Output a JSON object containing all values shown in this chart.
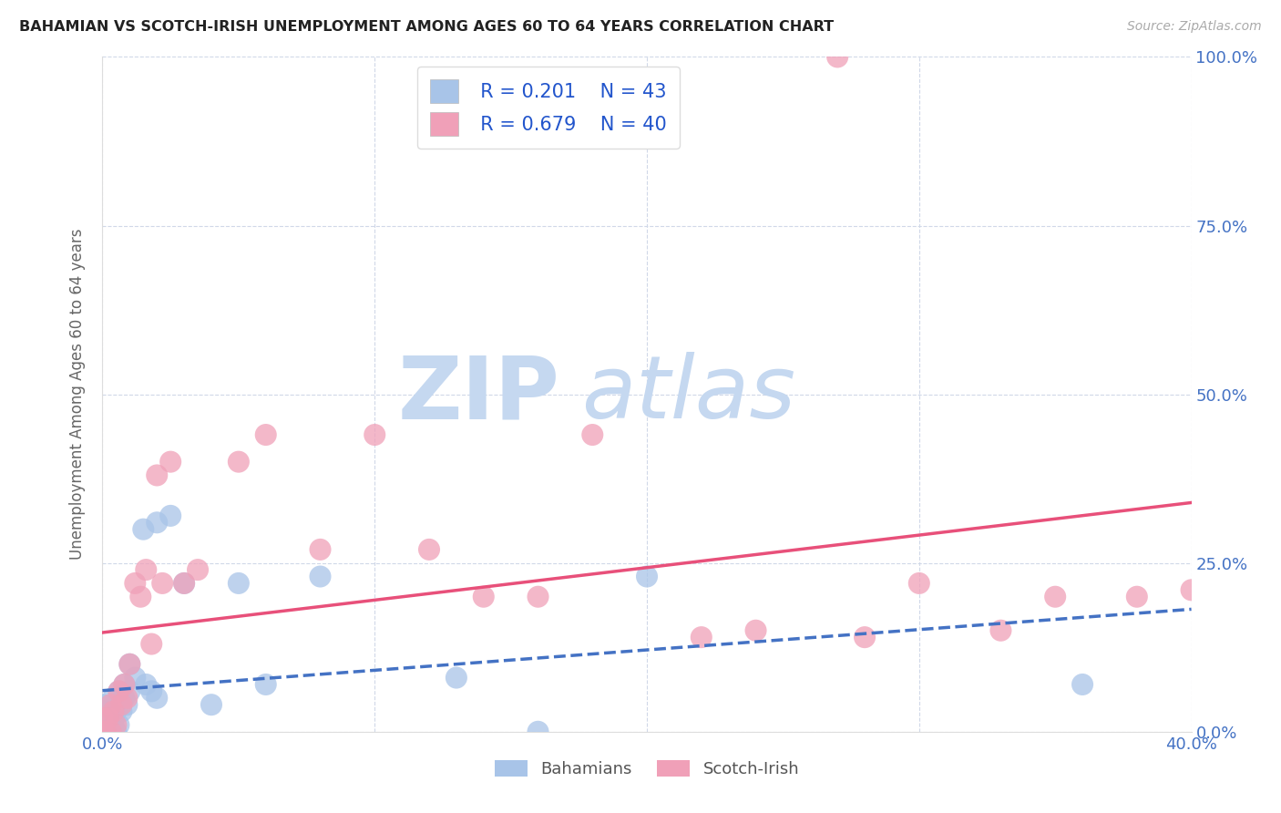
{
  "title": "BAHAMIAN VS SCOTCH-IRISH UNEMPLOYMENT AMONG AGES 60 TO 64 YEARS CORRELATION CHART",
  "source": "Source: ZipAtlas.com",
  "ylabel": "Unemployment Among Ages 60 to 64 years",
  "xlim": [
    0.0,
    0.4
  ],
  "ylim": [
    0.0,
    1.0
  ],
  "xticks": [
    0.0,
    0.1,
    0.2,
    0.3,
    0.4
  ],
  "yticks": [
    0.0,
    0.25,
    0.5,
    0.75,
    1.0
  ],
  "xtick_labels": [
    "0.0%",
    "",
    "",
    "",
    "40.0%"
  ],
  "ytick_labels_right": [
    "0.0%",
    "25.0%",
    "50.0%",
    "75.0%",
    "100.0%"
  ],
  "bahamian_color": "#a8c4e8",
  "scotch_irish_color": "#f0a0b8",
  "bahamian_line_color": "#4472c4",
  "scotch_irish_line_color": "#e8507a",
  "R_bahamian": 0.201,
  "N_bahamian": 43,
  "R_scotch_irish": 0.679,
  "N_scotch_irish": 40,
  "bahamian_x": [
    0.0,
    0.0,
    0.0,
    0.0,
    0.0,
    0.0,
    0.0,
    0.0,
    0.0,
    0.0,
    0.0,
    0.002,
    0.002,
    0.003,
    0.003,
    0.004,
    0.004,
    0.005,
    0.005,
    0.006,
    0.006,
    0.007,
    0.008,
    0.008,
    0.009,
    0.01,
    0.01,
    0.012,
    0.015,
    0.016,
    0.018,
    0.02,
    0.02,
    0.025,
    0.03,
    0.04,
    0.05,
    0.06,
    0.08,
    0.13,
    0.16,
    0.2,
    0.36
  ],
  "bahamian_y": [
    0.0,
    0.0,
    0.0,
    0.0,
    0.0,
    0.01,
    0.01,
    0.02,
    0.02,
    0.03,
    0.04,
    0.0,
    0.01,
    0.0,
    0.02,
    0.01,
    0.05,
    0.0,
    0.03,
    0.01,
    0.06,
    0.03,
    0.05,
    0.07,
    0.04,
    0.06,
    0.1,
    0.08,
    0.3,
    0.07,
    0.06,
    0.31,
    0.05,
    0.32,
    0.22,
    0.04,
    0.22,
    0.07,
    0.23,
    0.08,
    0.0,
    0.23,
    0.07
  ],
  "scotch_irish_x": [
    0.0,
    0.0,
    0.0,
    0.001,
    0.002,
    0.003,
    0.003,
    0.004,
    0.005,
    0.006,
    0.007,
    0.008,
    0.009,
    0.01,
    0.012,
    0.014,
    0.016,
    0.018,
    0.02,
    0.022,
    0.025,
    0.03,
    0.035,
    0.05,
    0.06,
    0.08,
    0.1,
    0.12,
    0.14,
    0.16,
    0.18,
    0.22,
    0.24,
    0.27,
    0.28,
    0.3,
    0.33,
    0.35,
    0.38,
    0.4
  ],
  "scotch_irish_y": [
    0.0,
    0.0,
    0.02,
    0.0,
    0.02,
    0.0,
    0.04,
    0.03,
    0.01,
    0.06,
    0.04,
    0.07,
    0.05,
    0.1,
    0.22,
    0.2,
    0.24,
    0.13,
    0.38,
    0.22,
    0.4,
    0.22,
    0.24,
    0.4,
    0.44,
    0.27,
    0.44,
    0.27,
    0.2,
    0.2,
    0.44,
    0.14,
    0.15,
    1.0,
    0.14,
    0.22,
    0.15,
    0.2,
    0.2,
    0.21
  ],
  "watermark_zip": "ZIP",
  "watermark_atlas": "atlas",
  "watermark_color": "#c5d8f0",
  "legend_text_color": "#2255cc",
  "background_color": "#ffffff",
  "grid_color": "#d0d8e8",
  "title_color": "#222222",
  "axis_label_color": "#666666",
  "tick_color": "#4472c4",
  "bottom_legend_bahamians": "Bahamians",
  "bottom_legend_scotch": "Scotch-Irish"
}
